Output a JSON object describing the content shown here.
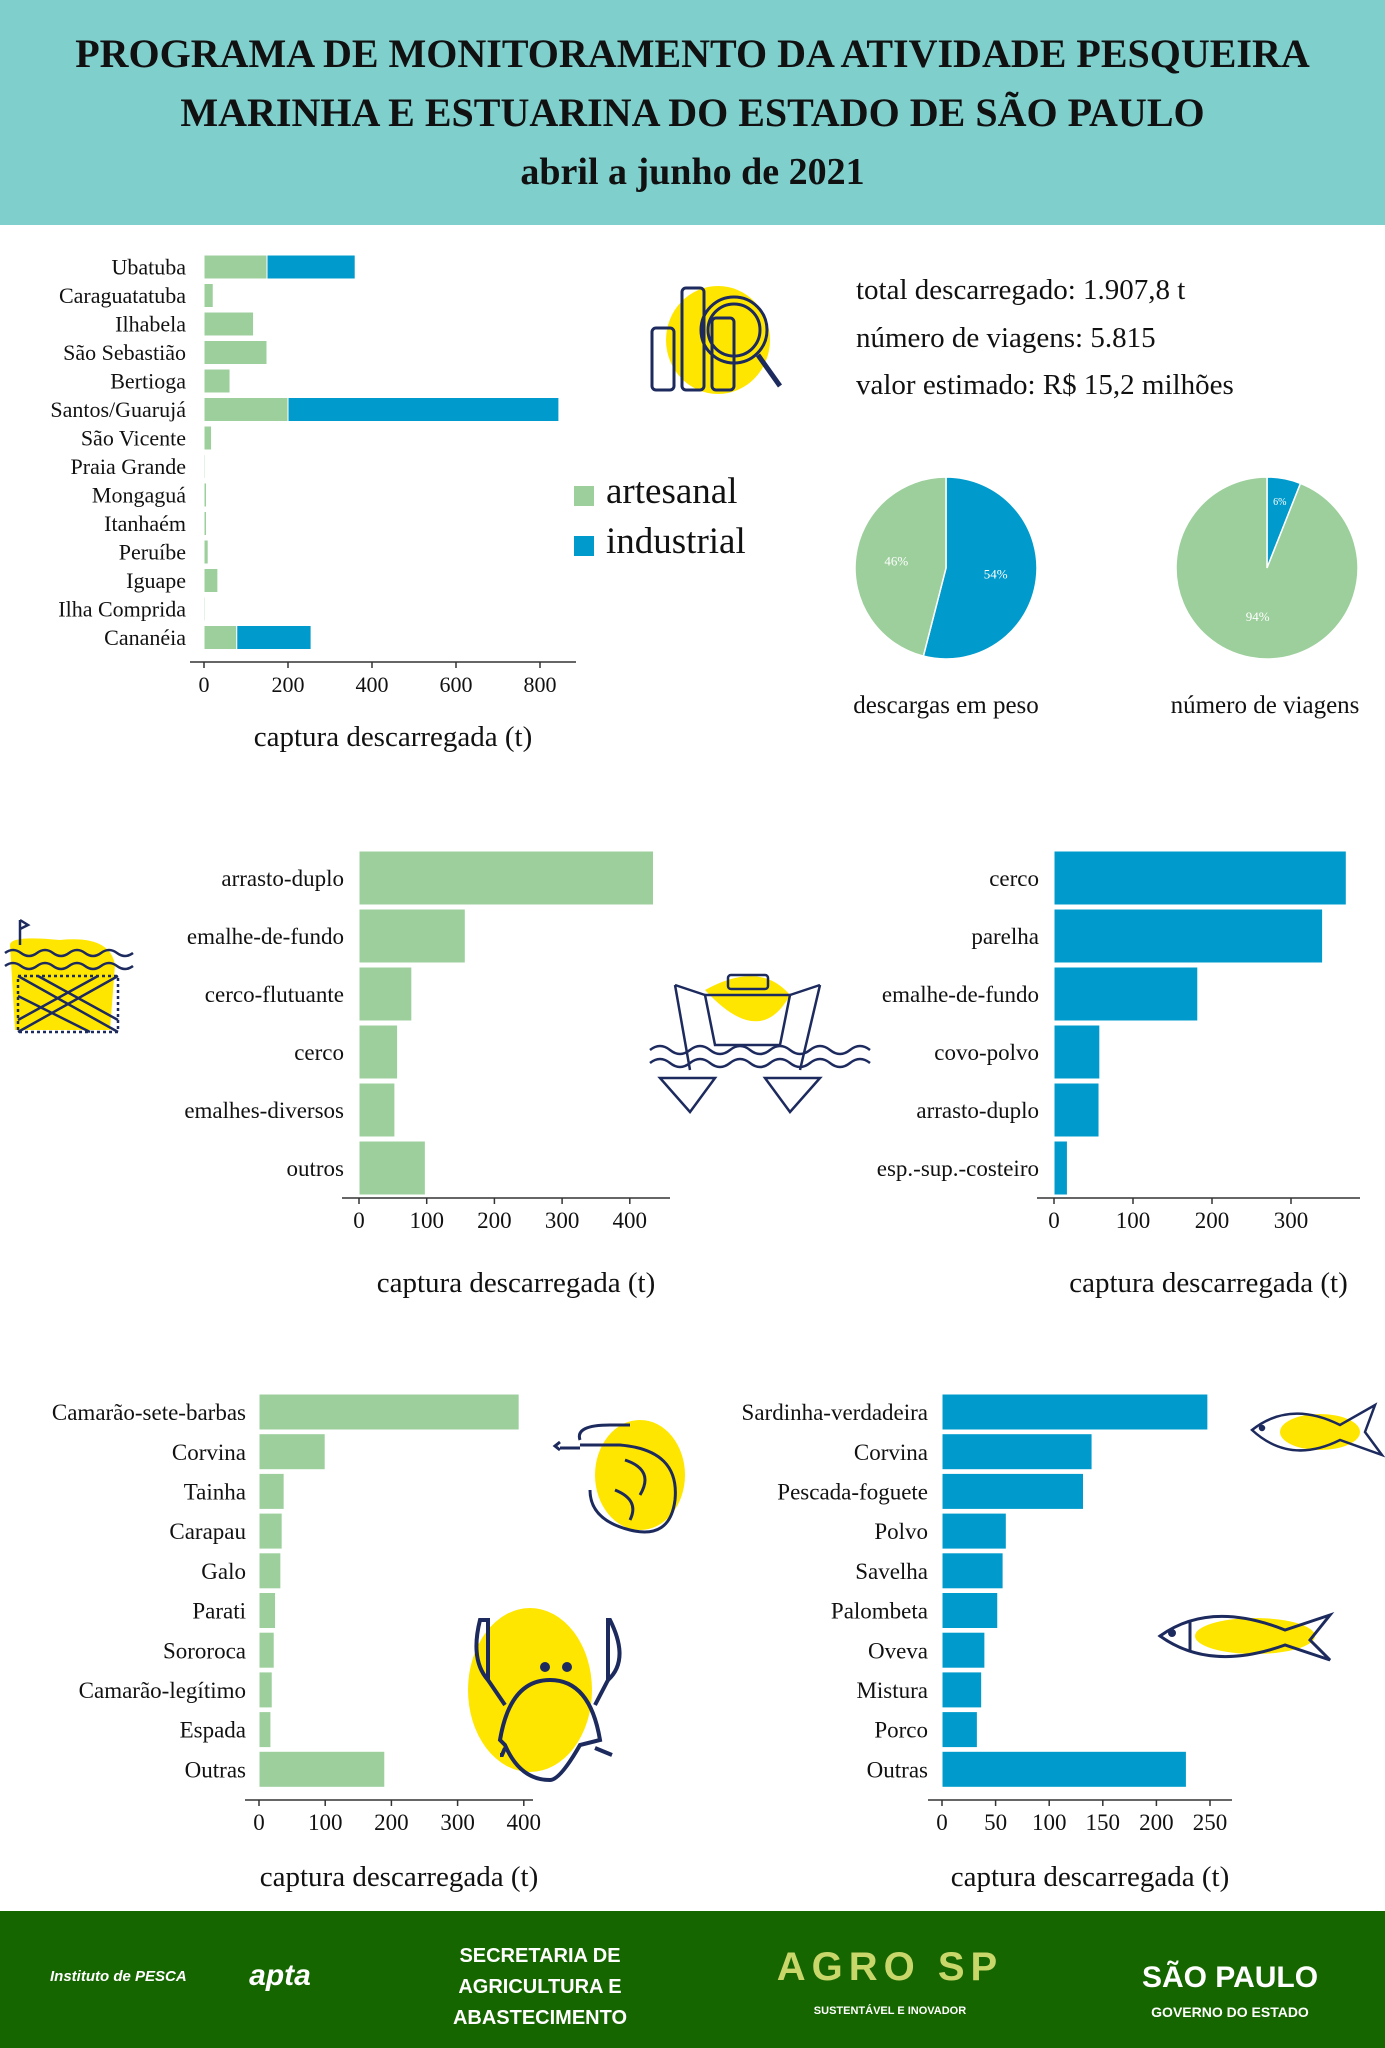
{
  "header": {
    "line1": "PROGRAMA DE MONITORAMENTO DA ATIVIDADE PESQUEIRA",
    "line2": "MARINHA E ESTUARINA DO ESTADO DE SÃO PAULO",
    "line3": "abril a junho de 2021"
  },
  "summary": {
    "total": "total descarregado: 1.907,8 t",
    "trips": "número de viagens: 5.815",
    "value": "valor estimado: R$ 15,2 milhões"
  },
  "legend": {
    "artesanal": "artesanal",
    "industrial": "industrial"
  },
  "colors": {
    "artesanal": "#9ccf9c",
    "industrial": "#009bcc",
    "header": "#7fcfcd",
    "footer": "#166600",
    "icon_yellow": "#ffe600",
    "icon_navy": "#1c2a5e"
  },
  "footer": {
    "pesca": "Instituto de PESCA",
    "apta": "apta",
    "secretaria": [
      "SECRETARIA DE",
      "AGRICULTURA E",
      "ABASTECIMENTO"
    ],
    "agro": "AGRO SP",
    "agro_sub": "SUSTENTÁVEL E INOVADOR",
    "sp": "SÃO PAULO",
    "sp_sub": "GOVERNO DO ESTADO"
  },
  "chart_data": [
    {
      "id": "municipios",
      "type": "bar",
      "stacked": true,
      "orientation": "horizontal",
      "categories": [
        "Ubatuba",
        "Caraguatatuba",
        "Ilhabela",
        "São Sebastião",
        "Bertioga",
        "Santos/Guarujá",
        "São Vicente",
        "Praia Grande",
        "Mongaguá",
        "Itanhaém",
        "Peruíbe",
        "Iguape",
        "Ilha Comprida",
        "Cananéia"
      ],
      "series": [
        {
          "name": "artesanal",
          "values": [
            150,
            22,
            118,
            150,
            62,
            200,
            18,
            3,
            6,
            6,
            10,
            33,
            3,
            78
          ]
        },
        {
          "name": "industrial",
          "values": [
            210,
            0,
            0,
            0,
            0,
            645,
            0,
            0,
            0,
            0,
            0,
            0,
            0,
            177
          ]
        }
      ],
      "xlabel": "captura descarregada (t)",
      "xticks": [
        0,
        200,
        400,
        600,
        800
      ],
      "xlim": [
        0,
        880
      ]
    },
    {
      "id": "pie-peso",
      "type": "pie",
      "title": "descargas em peso",
      "slices": [
        {
          "name": "industrial",
          "value": 54,
          "label": "54%"
        },
        {
          "name": "artesanal",
          "value": 46,
          "label": "46%"
        }
      ]
    },
    {
      "id": "pie-viagens",
      "type": "pie",
      "title": "número de viagens",
      "slices": [
        {
          "name": "industrial",
          "value": 6,
          "label": "6%"
        },
        {
          "name": "artesanal",
          "value": 94,
          "label": "94%"
        }
      ]
    },
    {
      "id": "artes-artesanal",
      "type": "bar",
      "orientation": "horizontal",
      "series_name": "artesanal",
      "categories": [
        "arrasto-duplo",
        "emalhe-de-fundo",
        "cerco-flutuante",
        "cerco",
        "emalhes-diversos",
        "outros"
      ],
      "values": [
        435,
        157,
        78,
        57,
        53,
        98
      ],
      "xlabel": "captura descarregada (t)",
      "xticks": [
        0,
        100,
        200,
        300,
        400
      ],
      "xlim": [
        0,
        460
      ]
    },
    {
      "id": "artes-industrial",
      "type": "bar",
      "orientation": "horizontal",
      "series_name": "industrial",
      "categories": [
        "cerco",
        "parelha",
        "emalhe-de-fundo",
        "covo-polvo",
        "arrasto-duplo",
        "esp.-sup.-costeiro"
      ],
      "values": [
        370,
        340,
        182,
        58,
        57,
        17
      ],
      "xlabel": "captura descarregada (t)",
      "xticks": [
        0,
        100,
        200,
        300
      ],
      "xlim": [
        0,
        380
      ]
    },
    {
      "id": "especies-artesanal",
      "type": "bar",
      "orientation": "horizontal",
      "series_name": "artesanal",
      "categories": [
        "Camarão-sete-barbas",
        "Corvina",
        "Tainha",
        "Carapau",
        "Galo",
        "Parati",
        "Sororoca",
        "Camarão-legítimo",
        "Espada",
        "Outras"
      ],
      "values": [
        393,
        100,
        38,
        35,
        33,
        25,
        23,
        20,
        18,
        190
      ],
      "xlabel": "captura descarregada (t)",
      "xticks": [
        0,
        100,
        200,
        300,
        400
      ],
      "xlim": [
        0,
        410
      ]
    },
    {
      "id": "especies-industrial",
      "type": "bar",
      "orientation": "horizontal",
      "series_name": "industrial",
      "categories": [
        "Sardinha-verdadeira",
        "Corvina",
        "Pescada-foguete",
        "Polvo",
        "Savelha",
        "Palombeta",
        "Oveva",
        "Mistura",
        "Porco",
        "Outras"
      ],
      "values": [
        248,
        140,
        132,
        60,
        57,
        52,
        40,
        37,
        33,
        228
      ],
      "xlabel": "captura descarregada (t)",
      "xticks": [
        0,
        50,
        100,
        150,
        200,
        250
      ],
      "xlim": [
        0,
        255
      ]
    }
  ]
}
